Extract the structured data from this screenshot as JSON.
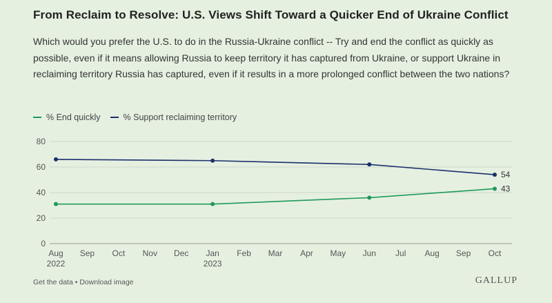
{
  "header": {
    "title": "From Reclaim to Resolve: U.S. Views Shift Toward a Quicker End of Ukraine Conflict",
    "subtitle": "Which would you prefer the U.S. to do in the Russia-Ukraine conflict -- Try and end the conflict as quickly as possible, even if it means allowing Russia to keep territory it has captured from Ukraine, or support Ukraine in reclaiming territory Russia has captured, even if it results in a more prolonged conflict between the two nations?"
  },
  "chart_data": {
    "type": "line",
    "title": "",
    "xlabel": "",
    "ylabel": "",
    "ylim": [
      0,
      80
    ],
    "yticks": [
      0,
      20,
      40,
      60,
      80
    ],
    "grid": true,
    "legend_position": "top-left",
    "x_ticks": [
      {
        "label": "Aug",
        "sublabel": "2022",
        "month_index": 0
      },
      {
        "label": "Sep",
        "sublabel": "",
        "month_index": 1
      },
      {
        "label": "Oct",
        "sublabel": "",
        "month_index": 2
      },
      {
        "label": "Nov",
        "sublabel": "",
        "month_index": 3
      },
      {
        "label": "Dec",
        "sublabel": "",
        "month_index": 4
      },
      {
        "label": "Jan",
        "sublabel": "2023",
        "month_index": 5
      },
      {
        "label": "Feb",
        "sublabel": "",
        "month_index": 6
      },
      {
        "label": "Mar",
        "sublabel": "",
        "month_index": 7
      },
      {
        "label": "Apr",
        "sublabel": "",
        "month_index": 8
      },
      {
        "label": "May",
        "sublabel": "",
        "month_index": 9
      },
      {
        "label": "Jun",
        "sublabel": "",
        "month_index": 10
      },
      {
        "label": "Jul",
        "sublabel": "",
        "month_index": 11
      },
      {
        "label": "Aug",
        "sublabel": "",
        "month_index": 12
      },
      {
        "label": "Sep",
        "sublabel": "",
        "month_index": 13
      },
      {
        "label": "Oct",
        "sublabel": "",
        "month_index": 14
      }
    ],
    "x": [
      0,
      5,
      10,
      14
    ],
    "series": [
      {
        "name": "% End quickly",
        "color": "#1f9a5a",
        "values": [
          31,
          31,
          36,
          43
        ],
        "end_label": "43"
      },
      {
        "name": "% Support reclaiming territory",
        "color": "#1b2f6b",
        "values": [
          66,
          65,
          62,
          54
        ],
        "end_label": "54"
      }
    ]
  },
  "footer": {
    "get_data": "Get the data",
    "separator": " • ",
    "download": "Download image",
    "brand": "GALLUP"
  }
}
